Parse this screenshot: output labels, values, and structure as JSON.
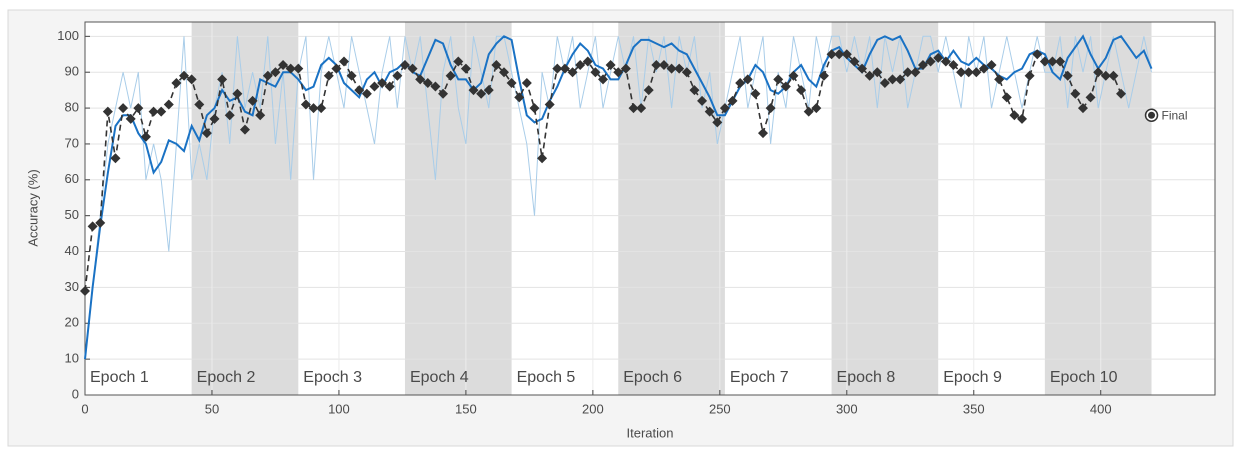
{
  "chart_data": {
    "type": "line",
    "xlabel": "Iteration",
    "ylabel": "Accuracy (%)",
    "xlim": [
      0,
      445
    ],
    "ylim": [
      0,
      104
    ],
    "xticks": [
      0,
      50,
      100,
      150,
      200,
      250,
      300,
      350,
      400
    ],
    "yticks": [
      0,
      10,
      20,
      30,
      40,
      50,
      60,
      70,
      80,
      90,
      100
    ],
    "grid": true,
    "epochs": {
      "labels": [
        "Epoch 1",
        "Epoch 2",
        "Epoch 3",
        "Epoch 4",
        "Epoch 5",
        "Epoch 6",
        "Epoch 7",
        "Epoch 8",
        "Epoch 9",
        "Epoch 10"
      ],
      "bounds": [
        0,
        42,
        84,
        126,
        168,
        210,
        252,
        294,
        336,
        378,
        420
      ],
      "shade": "#dcdcdc"
    },
    "series": [
      {
        "role": "raw",
        "color": "#a9cde9",
        "x": [
          0,
          3,
          6,
          9,
          12,
          15,
          18,
          21,
          24,
          27,
          30,
          33,
          36,
          39,
          42,
          45,
          48,
          51,
          54,
          57,
          60,
          63,
          66,
          69,
          72,
          75,
          78,
          81,
          84,
          87,
          90,
          93,
          96,
          99,
          102,
          105,
          108,
          111,
          114,
          117,
          120,
          123,
          126,
          129,
          132,
          135,
          138,
          141,
          144,
          147,
          150,
          153,
          156,
          159,
          162,
          165,
          168,
          171,
          174,
          177,
          180,
          183,
          186,
          189,
          192,
          195,
          198,
          201,
          204,
          207,
          210,
          213,
          216,
          219,
          222,
          225,
          228,
          231,
          234,
          237,
          240,
          243,
          246,
          249,
          252,
          255,
          258,
          261,
          264,
          267,
          270,
          273,
          276,
          279,
          282,
          285,
          288,
          291,
          294,
          297,
          300,
          303,
          306,
          309,
          312,
          315,
          318,
          321,
          324,
          327,
          330,
          333,
          336,
          339,
          342,
          345,
          348,
          351,
          354,
          357,
          360,
          363,
          366,
          369,
          372,
          375,
          378,
          381,
          384,
          387,
          390,
          393,
          396,
          399,
          402,
          405,
          408,
          411,
          414,
          417,
          420
        ],
        "values": [
          10,
          30,
          50,
          70,
          80,
          90,
          80,
          90,
          60,
          70,
          60,
          40,
          70,
          100,
          60,
          70,
          60,
          80,
          90,
          70,
          100,
          80,
          90,
          80,
          100,
          70,
          90,
          60,
          90,
          100,
          60,
          90,
          100,
          90,
          80,
          100,
          90,
          80,
          70,
          90,
          100,
          80,
          100,
          90,
          100,
          80,
          60,
          90,
          100,
          80,
          70,
          100,
          90,
          80,
          100,
          100,
          90,
          80,
          70,
          50,
          90,
          80,
          100,
          90,
          100,
          80,
          90,
          100,
          80,
          90,
          100,
          90,
          100,
          80,
          100,
          90,
          100,
          80,
          100,
          90,
          100,
          80,
          90,
          70,
          80,
          90,
          100,
          80,
          90,
          100,
          70,
          90,
          80,
          100,
          90,
          80,
          100,
          90,
          100,
          100,
          90,
          100,
          90,
          100,
          80,
          100,
          90,
          100,
          80,
          90,
          100,
          100,
          90,
          100,
          90,
          80,
          100,
          90,
          100,
          80,
          90,
          100,
          90,
          80,
          90,
          100,
          90,
          90,
          100,
          80,
          100,
          90,
          100,
          80,
          90,
          100,
          90,
          80,
          90,
          100,
          90
        ]
      },
      {
        "role": "smoothed",
        "color": "#1a72c4",
        "x": [
          0,
          3,
          6,
          9,
          12,
          15,
          18,
          21,
          24,
          27,
          30,
          33,
          36,
          39,
          42,
          45,
          48,
          51,
          54,
          57,
          60,
          63,
          66,
          69,
          72,
          75,
          78,
          81,
          84,
          87,
          90,
          93,
          96,
          99,
          102,
          105,
          108,
          111,
          114,
          117,
          120,
          123,
          126,
          129,
          132,
          135,
          138,
          141,
          144,
          147,
          150,
          153,
          156,
          159,
          162,
          165,
          168,
          171,
          174,
          177,
          180,
          183,
          186,
          189,
          192,
          195,
          198,
          201,
          204,
          207,
          210,
          213,
          216,
          219,
          222,
          225,
          228,
          231,
          234,
          237,
          240,
          243,
          246,
          249,
          252,
          255,
          258,
          261,
          264,
          267,
          270,
          273,
          276,
          279,
          282,
          285,
          288,
          291,
          294,
          297,
          300,
          303,
          306,
          309,
          312,
          315,
          318,
          321,
          324,
          327,
          330,
          333,
          336,
          339,
          342,
          345,
          348,
          351,
          354,
          357,
          360,
          363,
          366,
          369,
          372,
          375,
          378,
          381,
          384,
          387,
          390,
          393,
          396,
          399,
          402,
          405,
          408,
          411,
          414,
          417,
          420
        ],
        "values": [
          10,
          30,
          47,
          62,
          75,
          78,
          78,
          73,
          70,
          62,
          65,
          71,
          70,
          68,
          75,
          71,
          78,
          80,
          85,
          82,
          83,
          79,
          78,
          88,
          87,
          86,
          90,
          90,
          88,
          85,
          86,
          92,
          94,
          92,
          87,
          85,
          83,
          88,
          90,
          86,
          90,
          91,
          93,
          90,
          89,
          94,
          99,
          98,
          92,
          88,
          88,
          85,
          87,
          95,
          98,
          100,
          99,
          88,
          78,
          76,
          77,
          82,
          86,
          91,
          95,
          98,
          96,
          92,
          91,
          88,
          88,
          92,
          97,
          99,
          99,
          98,
          97,
          98,
          96,
          95,
          91,
          87,
          83,
          78,
          78,
          82,
          86,
          88,
          92,
          90,
          85,
          84,
          86,
          90,
          92,
          88,
          86,
          92,
          96,
          97,
          94,
          92,
          90,
          95,
          99,
          100,
          99,
          100,
          96,
          91,
          91,
          95,
          96,
          93,
          96,
          93,
          92,
          94,
          92,
          91,
          89,
          88,
          90,
          91,
          95,
          96,
          95,
          90,
          88,
          94,
          97,
          100,
          95,
          91,
          94,
          99,
          100,
          97,
          94,
          96,
          91
        ]
      },
      {
        "role": "validation",
        "color": "#333333",
        "x": [
          0,
          3,
          6,
          9,
          12,
          15,
          18,
          21,
          24,
          27,
          30,
          33,
          36,
          39,
          42,
          45,
          48,
          51,
          54,
          57,
          60,
          63,
          66,
          69,
          72,
          75,
          78,
          81,
          84,
          87,
          90,
          93,
          96,
          99,
          102,
          105,
          108,
          111,
          114,
          117,
          120,
          123,
          126,
          129,
          132,
          135,
          138,
          141,
          144,
          147,
          150,
          153,
          156,
          159,
          162,
          165,
          168,
          171,
          174,
          177,
          180,
          183,
          186,
          189,
          192,
          195,
          198,
          201,
          204,
          207,
          210,
          213,
          216,
          219,
          222,
          225,
          228,
          231,
          234,
          237,
          240,
          243,
          246,
          249,
          252,
          255,
          258,
          261,
          264,
          267,
          270,
          273,
          276,
          279,
          282,
          285,
          288,
          291,
          294,
          297,
          300,
          303,
          306,
          309,
          312,
          315,
          318,
          321,
          324,
          327,
          330,
          333,
          336,
          339,
          342,
          345,
          348,
          351,
          354,
          357,
          360,
          363,
          366,
          369,
          372,
          375,
          378,
          381,
          384,
          387,
          390,
          393,
          396,
          399,
          402,
          405,
          408
        ],
        "values": [
          29,
          47,
          48,
          79,
          66,
          80,
          77,
          80,
          72,
          79,
          79,
          81,
          87,
          89,
          88,
          81,
          73,
          77,
          88,
          78,
          84,
          74,
          82,
          78,
          89,
          90,
          92,
          91,
          91,
          81,
          80,
          80,
          89,
          91,
          93,
          89,
          85,
          84,
          86,
          87,
          86,
          89,
          92,
          91,
          88,
          87,
          86,
          84,
          89,
          93,
          91,
          85,
          84,
          85,
          92,
          90,
          87,
          83,
          87,
          80,
          66,
          81,
          91,
          91,
          90,
          92,
          93,
          90,
          88,
          92,
          90,
          91,
          80,
          80,
          85,
          92,
          92,
          91,
          91,
          90,
          85,
          82,
          79,
          76,
          80,
          82,
          87,
          88,
          84,
          73,
          80,
          88,
          86,
          89,
          85,
          79,
          80,
          89,
          95,
          95,
          95,
          93,
          91,
          89,
          90,
          87,
          88,
          88,
          90,
          90,
          92,
          93,
          94,
          93,
          92,
          90,
          90,
          90,
          91,
          92,
          88,
          83,
          78,
          77,
          89,
          95,
          93,
          93,
          93,
          89,
          84,
          80,
          83,
          90,
          89,
          89,
          84
        ]
      }
    ],
    "final": {
      "label": "Final",
      "x": 420,
      "y": 78
    }
  }
}
